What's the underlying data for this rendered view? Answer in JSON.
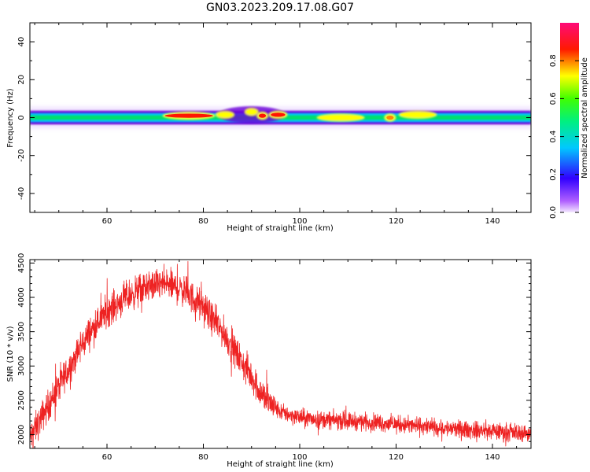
{
  "title": "GN03.2023.209.17.08.G07",
  "colors": {
    "snr_line": "#ee2222",
    "ridge_outer": "#6a00d8",
    "ridge_mid": "#00c8ff",
    "ridge_core": "#00e06a"
  },
  "chart_data": [
    {
      "type": "heatmap",
      "xlabel": "Height of straight line (km)",
      "ylabel": "Frequency (Hz)",
      "xlim": [
        44,
        148
      ],
      "ylim": [
        -50,
        50
      ],
      "xticks": [
        60,
        80,
        100,
        120,
        140
      ],
      "yticks": [
        -40,
        -20,
        0,
        20,
        40
      ],
      "colorbar": {
        "label": "Normalized spectral amplitude",
        "range": [
          0,
          1
        ],
        "ticks": [
          "0.0",
          "0.2",
          "0.4",
          "0.6",
          "0.8"
        ],
        "colormap": "rainbow (purple→blue→cyan→green→yellow→red→pink)"
      },
      "ridge": {
        "center_hz": 0,
        "blobs": [
          {
            "x": [
              72,
              82
            ],
            "hz": 1,
            "amplitude": 0.95
          },
          {
            "x": [
              83,
              86
            ],
            "hz": 1.5,
            "amplitude": 0.7
          },
          {
            "x": [
              89,
              91
            ],
            "hz": 3,
            "amplitude": 0.75
          },
          {
            "x": [
              91.5,
              93
            ],
            "hz": 1,
            "amplitude": 0.9
          },
          {
            "x": [
              94,
              97
            ],
            "hz": 1.5,
            "amplitude": 1.0
          },
          {
            "x": [
              104,
              113
            ],
            "hz": 0,
            "amplitude": 0.7
          },
          {
            "x": [
              118,
              119.5
            ],
            "hz": 0,
            "amplitude": 0.85
          },
          {
            "x": [
              121,
              128
            ],
            "hz": 1.5,
            "amplitude": 0.7
          }
        ]
      }
    },
    {
      "type": "line",
      "xlabel": "Height of straight line (km)",
      "ylabel": "SNR (10 * v/v)",
      "xlim": [
        44,
        148
      ],
      "ylim": [
        1800,
        4550
      ],
      "xticks": [
        60,
        80,
        100,
        120,
        140
      ],
      "yticks": [
        2000,
        2500,
        3000,
        3500,
        4000,
        4500
      ],
      "series": [
        {
          "trend_x": [
            44,
            48,
            52,
            56,
            60,
            64,
            68,
            72,
            76,
            80,
            84,
            88,
            90,
            92,
            94,
            96,
            100,
            104,
            110,
            116,
            120,
            126,
            132,
            140,
            148
          ],
          "trend_y": [
            1950,
            2450,
            2950,
            3450,
            3800,
            4000,
            4150,
            4200,
            4100,
            3850,
            3500,
            3050,
            2850,
            2600,
            2450,
            2330,
            2250,
            2220,
            2200,
            2180,
            2150,
            2120,
            2080,
            2050,
            2020
          ],
          "noise_amplitude": 250
        }
      ]
    }
  ]
}
